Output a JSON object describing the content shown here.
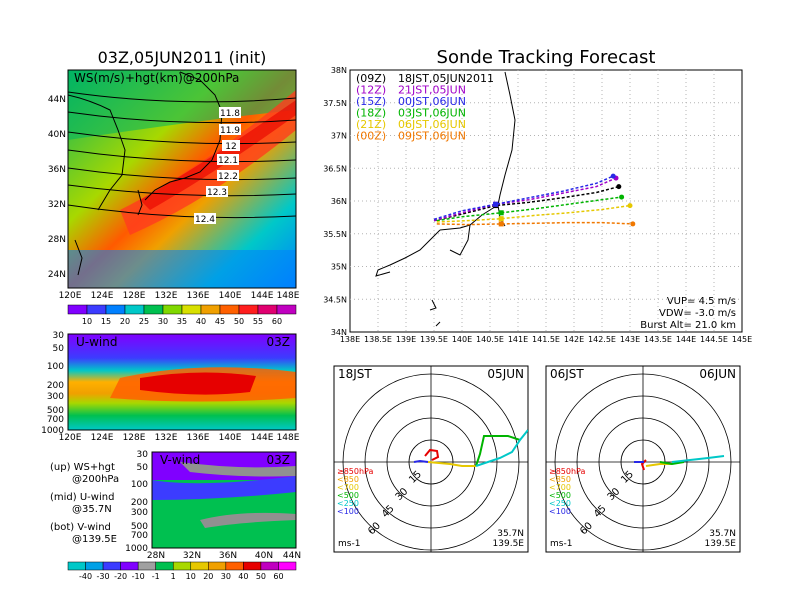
{
  "left_title": "03Z,05JUN2011 (init)",
  "right_title": "Sonde Tracking Forecast",
  "map_panel": {
    "label": "WS(m/s)+hgt(km)@200hPa",
    "lat_ticks": [
      "44N",
      "40N",
      "36N",
      "32N",
      "28N",
      "24N"
    ],
    "lon_ticks": [
      "120E",
      "124E",
      "128E",
      "132E",
      "136E",
      "140E",
      "144E",
      "148E"
    ],
    "contours": [
      "11.8",
      "11.9",
      "12",
      "12.1",
      "12.2",
      "12.3",
      "12.4"
    ],
    "colorbar": [
      "10",
      "15",
      "20",
      "25",
      "30",
      "35",
      "40",
      "45",
      "50",
      "55",
      "60"
    ],
    "colorbar_colors": [
      "#8000ff",
      "#3c3cff",
      "#0080ff",
      "#00c8c8",
      "#00c050",
      "#80d800",
      "#d8e000",
      "#f0a000",
      "#ff6000",
      "#ff1e1e",
      "#e00070",
      "#c000c0"
    ]
  },
  "u_panel": {
    "label": "U-wind",
    "time": "03Z",
    "p_ticks": [
      "30",
      "50",
      "100",
      "200",
      "300",
      "500",
      "700",
      "1000"
    ],
    "lon_ticks": [
      "120E",
      "124E",
      "128E",
      "132E",
      "136E",
      "140E",
      "144E",
      "148E"
    ]
  },
  "v_panel": {
    "label": "V-wind",
    "time": "03Z",
    "p_ticks": [
      "30",
      "50",
      "100",
      "200",
      "300",
      "500",
      "700",
      "1000"
    ],
    "lat_ticks": [
      "28N",
      "32N",
      "36N",
      "40N",
      "44N"
    ],
    "colorbar": [
      "-40",
      "-30",
      "-20",
      "-10",
      "-1",
      "1",
      "10",
      "20",
      "30",
      "40",
      "50",
      "60"
    ]
  },
  "legend_notes": {
    "up": [
      "(up) WS+hgt",
      "@200hPa"
    ],
    "mid": [
      "(mid) U-wind",
      "@35.7N"
    ],
    "bot": [
      "(bot) V-wind",
      "@139.5E"
    ]
  },
  "track_map": {
    "lat_ticks": [
      "38N",
      "37.5N",
      "37N",
      "36.5N",
      "36N",
      "35.5N",
      "35N",
      "34.5N",
      "34N"
    ],
    "lon_ticks": [
      "138E",
      "138.5E",
      "139E",
      "139.5E",
      "140E",
      "140.5E",
      "141E",
      "141.5E",
      "142E",
      "142.5E",
      "143E",
      "143.5E",
      "144E",
      "144.5E",
      "145E"
    ],
    "legend": [
      {
        "z": "(09Z)",
        "jst": "18JST,05JUN2011",
        "color": "#000000"
      },
      {
        "z": "(12Z)",
        "jst": "21JST,05JUN",
        "color": "#a000c8"
      },
      {
        "z": "(15Z)",
        "jst": "00JST,06JUN",
        "color": "#2828e6"
      },
      {
        "z": "(18Z)",
        "jst": "03JST,06JUN",
        "color": "#00b400"
      },
      {
        "z": "(21Z)",
        "jst": "06JST,06JUN",
        "color": "#e6c800"
      },
      {
        "z": "(00Z)",
        "jst": "09JST,06JUN",
        "color": "#f07800"
      }
    ],
    "vup": "VUP= 4.5 m/s",
    "vdw": "VDW= -3.0 m/s",
    "burst": "Burst Alt= 21.0 km"
  },
  "chart_data": [
    {
      "type": "line",
      "title": "Sonde Tracking Forecast",
      "xlim": [
        138,
        145
      ],
      "ylim": [
        34,
        38
      ],
      "series": [
        {
          "name": "(09Z) 18JST,05JUN2011",
          "x": [
            139.5,
            140.0,
            140.6,
            141.2,
            141.8,
            142.4,
            142.8
          ],
          "y": [
            35.7,
            35.8,
            35.93,
            35.98,
            36.05,
            36.13,
            36.22
          ]
        },
        {
          "name": "(12Z) 21JST,05JUN",
          "x": [
            139.5,
            140.0,
            140.6,
            141.2,
            141.8,
            142.4,
            142.75
          ],
          "y": [
            35.7,
            35.82,
            35.95,
            36.02,
            36.12,
            36.22,
            36.35
          ]
        },
        {
          "name": "(15Z) 00JST,06JUN",
          "x": [
            139.5,
            140.0,
            140.6,
            141.2,
            141.8,
            142.4,
            142.7
          ],
          "y": [
            35.72,
            35.85,
            35.95,
            36.05,
            36.15,
            36.27,
            36.38
          ]
        },
        {
          "name": "(18Z) 03JST,06JUN",
          "x": [
            139.55,
            140.0,
            140.7,
            141.3,
            141.9,
            142.5,
            142.85
          ],
          "y": [
            35.7,
            35.76,
            35.82,
            35.88,
            35.95,
            36.02,
            36.06
          ]
        },
        {
          "name": "(21Z) 06JST,06JUN",
          "x": [
            139.55,
            140.1,
            140.7,
            141.3,
            141.9,
            142.5,
            143.0
          ],
          "y": [
            35.68,
            35.7,
            35.73,
            35.78,
            35.82,
            35.87,
            35.93
          ]
        },
        {
          "name": "(00Z) 09JST,06JUN",
          "x": [
            139.55,
            140.1,
            140.7,
            141.3,
            141.9,
            142.5,
            143.05
          ],
          "y": [
            35.65,
            35.64,
            35.65,
            35.66,
            35.67,
            35.67,
            35.65
          ]
        }
      ]
    }
  ],
  "hodo_left": {
    "time": "18JST",
    "date": "05JUN",
    "rings": [
      "15",
      "30",
      "45",
      "60"
    ],
    "levels": [
      {
        "label": "≥850hPa",
        "color": "#e60000"
      },
      {
        "label": "<850",
        "color": "#f0a000"
      },
      {
        "label": "<700",
        "color": "#e6c800"
      },
      {
        "label": "<500",
        "color": "#00b400"
      },
      {
        "label": "<250",
        "color": "#00c8c8"
      },
      {
        "label": "<100",
        "color": "#2828e6"
      }
    ],
    "lat": "35.7N",
    "lon": "139.5E",
    "unit": "ms-1"
  },
  "hodo_right": {
    "time": "06JST",
    "date": "06JUN",
    "rings": [
      "15",
      "30",
      "45",
      "60"
    ],
    "levels": [
      {
        "label": "≥850hPa",
        "color": "#e60000"
      },
      {
        "label": "<850",
        "color": "#f0a000"
      },
      {
        "label": "<700",
        "color": "#e6c800"
      },
      {
        "label": "<500",
        "color": "#00b400"
      },
      {
        "label": "<250",
        "color": "#00c8c8"
      },
      {
        "label": "<100",
        "color": "#2828e6"
      }
    ],
    "lat": "35.7N",
    "lon": "139.5E",
    "unit": "ms-1"
  }
}
